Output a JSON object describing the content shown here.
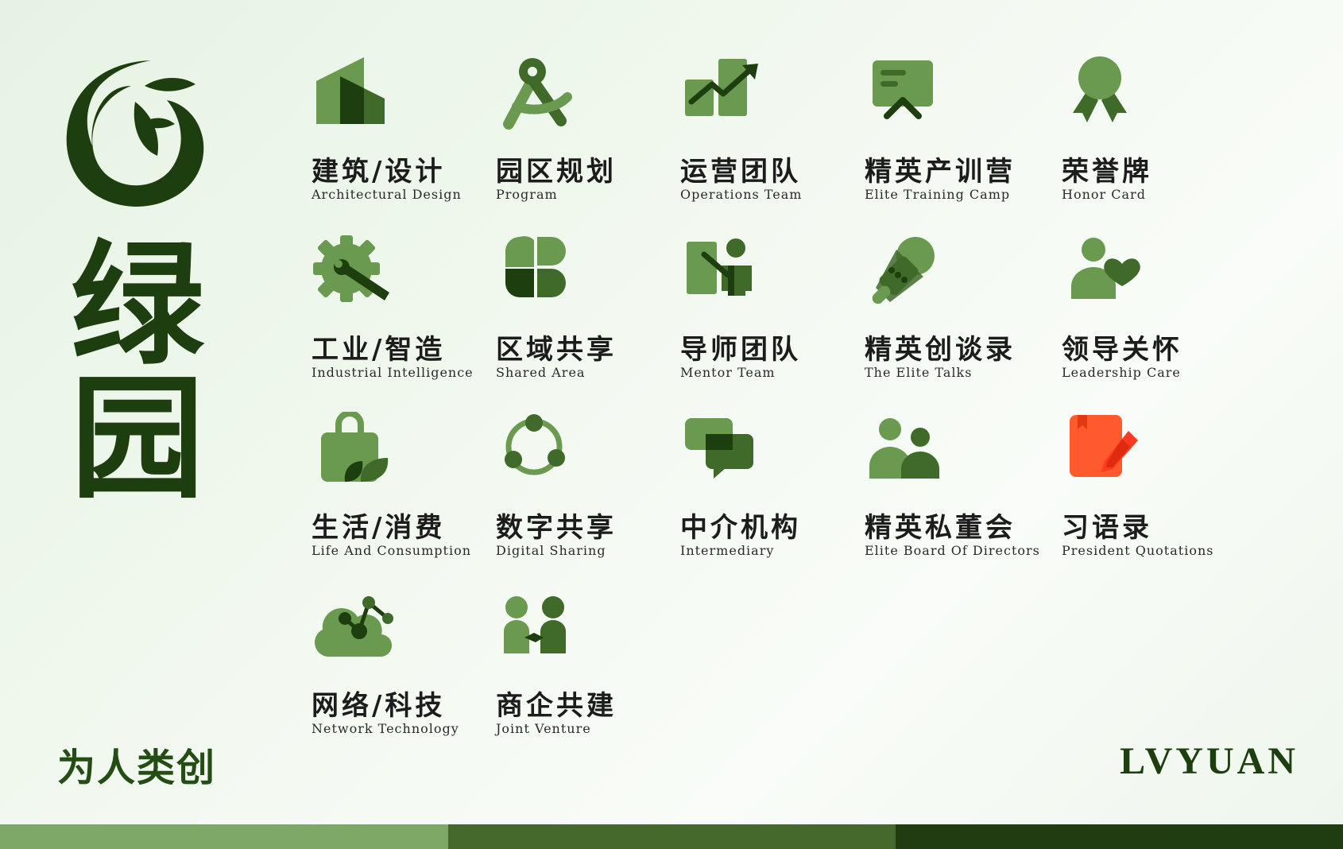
{
  "brand": {
    "char1": "绿",
    "char2": "园",
    "slogan": "为人类创",
    "name": "LVYUAN",
    "logo_icon": "leaf-swirl-logo"
  },
  "colors": {
    "dark": "#1d3f0f",
    "mid": "#3f6a2a",
    "light": "#6a9a4f",
    "accent": "#ff5a2e",
    "bar1": "#7ea866",
    "bar2": "#44692a",
    "bar3": "#1f3d10"
  },
  "items": [
    {
      "zh": "建筑/设计",
      "en": "Architectural Design",
      "icon": "building-icon"
    },
    {
      "zh": "园区规划",
      "en": "Program",
      "icon": "compass-icon"
    },
    {
      "zh": "运营团队",
      "en": "Operations Team",
      "icon": "growth-chart-icon"
    },
    {
      "zh": "精英产训营",
      "en": "Elite Training Camp",
      "icon": "presentation-board-icon"
    },
    {
      "zh": "荣誉牌",
      "en": "Honor Card",
      "icon": "award-ribbon-icon"
    },
    {
      "zh": "工业/智造",
      "en": "Industrial Intelligence",
      "icon": "gear-wrench-icon"
    },
    {
      "zh": "区域共享",
      "en": "Shared Area",
      "icon": "four-leaf-grid-icon"
    },
    {
      "zh": "导师团队",
      "en": "Mentor Team",
      "icon": "mentor-board-icon"
    },
    {
      "zh": "精英创谈录",
      "en": "The Elite Talks",
      "icon": "microphone-icon"
    },
    {
      "zh": "领导关怀",
      "en": "Leadership Care",
      "icon": "person-heart-icon"
    },
    {
      "zh": "生活/消费",
      "en": "Life And Consumption",
      "icon": "shopping-bag-icon"
    },
    {
      "zh": "数字共享",
      "en": "Digital Sharing",
      "icon": "share-cycle-icon"
    },
    {
      "zh": "中介机构",
      "en": "Intermediary",
      "icon": "chat-bubbles-icon"
    },
    {
      "zh": "精英私董会",
      "en": "Elite Board Of Directors",
      "icon": "two-people-icon"
    },
    {
      "zh": "习语录",
      "en": "President Quotations",
      "icon": "notebook-pen-icon"
    },
    {
      "zh": "网络/科技",
      "en": "Network Technology",
      "icon": "cloud-network-icon"
    },
    {
      "zh": "商企共建",
      "en": "Joint Venture",
      "icon": "handshake-people-icon"
    }
  ]
}
